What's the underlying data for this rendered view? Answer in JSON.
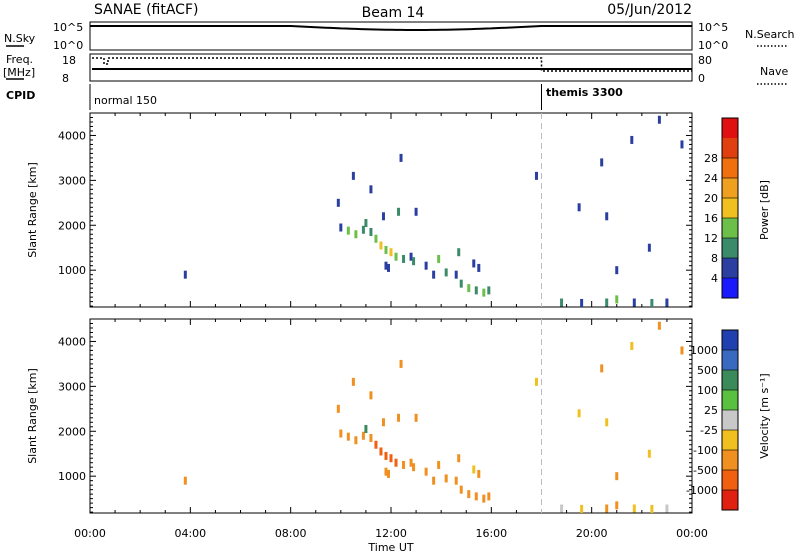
{
  "header": {
    "station": "SANAE (fitACF)",
    "beam": "Beam 14",
    "date": "05/Jun/2012"
  },
  "status_panels": {
    "nsky_label": "N.Sky",
    "nsky_ticks": [
      "10^5",
      "10^0"
    ],
    "nsearch_label": "N.Search",
    "freq_label_top": "Freq.",
    "freq_label_unit": "[MHz]",
    "freq_ticks": [
      "18",
      "8"
    ],
    "nave_label": "Nave",
    "nave_ticks": [
      "80",
      "0"
    ],
    "cpid_label": "CPID",
    "cpid_segments": [
      {
        "label": "normal 150",
        "start_hour": 0.0,
        "end_hour": 18.0
      },
      {
        "label": "themis 3300",
        "start_hour": 18.0,
        "end_hour": 24.0
      }
    ]
  },
  "axes": {
    "xlabel": "Time UT",
    "x_ticks": [
      "00:00",
      "04:00",
      "08:00",
      "12:00",
      "16:00",
      "20:00",
      "00:00"
    ],
    "ylabel": "Slant Range [km]",
    "y_ticks": [
      "1000",
      "2000",
      "3000",
      "4000"
    ]
  },
  "colorbars": {
    "power": {
      "label": "Power [dB]",
      "ticks": [
        "4",
        "8",
        "12",
        "16",
        "20",
        "24",
        "28"
      ],
      "colors": [
        "#1a1aff",
        "#2a3fa0",
        "#3b8b6b",
        "#6cc04a",
        "#f0c020",
        "#f0a020",
        "#f07010",
        "#e04010",
        "#e01010"
      ]
    },
    "velocity": {
      "label": "Velocity [m s⁻¹]",
      "ticks": [
        "1000",
        "500",
        "100",
        "25",
        "-25",
        "-100",
        "-500",
        "-1000"
      ],
      "colors": [
        "#2040b0",
        "#3a6abf",
        "#3a8a5a",
        "#5ac040",
        "#c8c8c8",
        "#f0c020",
        "#f09020",
        "#f06010",
        "#e02010"
      ]
    }
  },
  "chart_data": [
    {
      "type": "scatter",
      "title": "Power",
      "xlabel": "Time UT",
      "ylabel": "Slant Range [km]",
      "xlim": [
        0,
        24
      ],
      "ylim": [
        180,
        4500
      ],
      "series": [
        {
          "name": "",
          "points": [
            [
              3.8,
              900,
              4
            ],
            [
              10.0,
              1950,
              6
            ],
            [
              10.3,
              1880,
              12
            ],
            [
              10.6,
              1800,
              14
            ],
            [
              10.9,
              1900,
              10
            ],
            [
              11.2,
              1850,
              8
            ],
            [
              11.4,
              1700,
              14
            ],
            [
              11.6,
              1550,
              16
            ],
            [
              11.8,
              1450,
              12
            ],
            [
              12.0,
              1400,
              18
            ],
            [
              12.2,
              1300,
              12
            ],
            [
              12.5,
              1250,
              10
            ],
            [
              12.8,
              1300,
              6
            ],
            [
              11.8,
              1100,
              4
            ],
            [
              11.9,
              1050,
              6
            ],
            [
              12.9,
              1200,
              8
            ],
            [
              13.4,
              1100,
              6
            ],
            [
              13.7,
              900,
              6
            ],
            [
              14.2,
              950,
              8
            ],
            [
              14.6,
              900,
              4
            ],
            [
              14.8,
              700,
              10
            ],
            [
              15.1,
              600,
              12
            ],
            [
              15.4,
              550,
              8
            ],
            [
              15.7,
              500,
              14
            ],
            [
              15.9,
              550,
              10
            ],
            [
              15.3,
              1150,
              4
            ],
            [
              15.5,
              1050,
              6
            ],
            [
              10.5,
              3100,
              4
            ],
            [
              11.2,
              2800,
              6
            ],
            [
              12.4,
              3500,
              6
            ],
            [
              9.9,
              2500,
              4
            ],
            [
              13.0,
              2300,
              4
            ],
            [
              11.7,
              2200,
              6
            ],
            [
              17.8,
              3100,
              4
            ],
            [
              19.5,
              2400,
              4
            ],
            [
              20.6,
              2200,
              4
            ],
            [
              21.6,
              3900,
              4
            ],
            [
              22.7,
              4350,
              4
            ],
            [
              23.6,
              3800,
              4
            ],
            [
              18.8,
              280,
              8
            ],
            [
              19.6,
              270,
              6
            ],
            [
              20.6,
              280,
              10
            ],
            [
              21.0,
              350,
              12
            ],
            [
              21.7,
              280,
              6
            ],
            [
              22.4,
              270,
              8
            ],
            [
              23.0,
              280,
              4
            ],
            [
              22.3,
              1500,
              4
            ],
            [
              21.0,
              1000,
              4
            ],
            [
              20.4,
              3400,
              4
            ],
            [
              14.7,
              1400,
              10
            ],
            [
              13.9,
              1250,
              12
            ],
            [
              12.3,
              2300,
              10
            ],
            [
              11.0,
              2050,
              8
            ]
          ]
        }
      ]
    },
    {
      "type": "scatter",
      "title": "Velocity",
      "xlabel": "Time UT",
      "ylabel": "Slant Range [km]",
      "xlim": [
        0,
        24
      ],
      "ylim": [
        180,
        4500
      ],
      "series": [
        {
          "name": "",
          "points": [
            [
              3.8,
              900,
              -300
            ],
            [
              10.0,
              1950,
              -200
            ],
            [
              10.3,
              1880,
              -150
            ],
            [
              10.6,
              1800,
              -400
            ],
            [
              10.9,
              1900,
              -300
            ],
            [
              11.2,
              1850,
              -200
            ],
            [
              11.4,
              1700,
              -800
            ],
            [
              11.6,
              1550,
              -900
            ],
            [
              11.8,
              1450,
              -700
            ],
            [
              12.0,
              1400,
              -1000
            ],
            [
              12.2,
              1300,
              -600
            ],
            [
              12.5,
              1250,
              -400
            ],
            [
              12.8,
              1300,
              -300
            ],
            [
              11.8,
              1100,
              -300
            ],
            [
              11.9,
              1050,
              -200
            ],
            [
              12.9,
              1200,
              -300
            ],
            [
              13.4,
              1100,
              -300
            ],
            [
              13.7,
              900,
              -200
            ],
            [
              14.2,
              950,
              -150
            ],
            [
              14.6,
              900,
              -300
            ],
            [
              14.8,
              700,
              -500
            ],
            [
              15.1,
              600,
              -400
            ],
            [
              15.4,
              550,
              -300
            ],
            [
              15.7,
              500,
              -200
            ],
            [
              15.9,
              550,
              -150
            ],
            [
              15.3,
              1150,
              -100
            ],
            [
              15.5,
              1050,
              -200
            ],
            [
              10.5,
              3100,
              -300
            ],
            [
              11.2,
              2800,
              -200
            ],
            [
              12.4,
              3500,
              -300
            ],
            [
              9.9,
              2500,
              -150
            ],
            [
              13.0,
              2300,
              -200
            ],
            [
              11.7,
              2200,
              -400
            ],
            [
              17.8,
              3100,
              -100
            ],
            [
              19.5,
              2400,
              -100
            ],
            [
              20.6,
              2200,
              -50
            ],
            [
              21.6,
              3900,
              -100
            ],
            [
              22.7,
              4350,
              -200
            ],
            [
              23.6,
              3800,
              -300
            ],
            [
              18.8,
              280,
              0
            ],
            [
              19.6,
              270,
              -30
            ],
            [
              20.6,
              280,
              -150
            ],
            [
              21.0,
              350,
              -200
            ],
            [
              21.7,
              280,
              -80
            ],
            [
              22.4,
              270,
              -50
            ],
            [
              23.0,
              280,
              0
            ],
            [
              22.3,
              1500,
              -100
            ],
            [
              21.0,
              1000,
              -300
            ],
            [
              20.4,
              3400,
              -200
            ],
            [
              14.7,
              1400,
              -300
            ],
            [
              13.9,
              1250,
              -200
            ],
            [
              12.3,
              2300,
              -500
            ],
            [
              11.0,
              2050,
              150
            ]
          ]
        }
      ]
    }
  ]
}
